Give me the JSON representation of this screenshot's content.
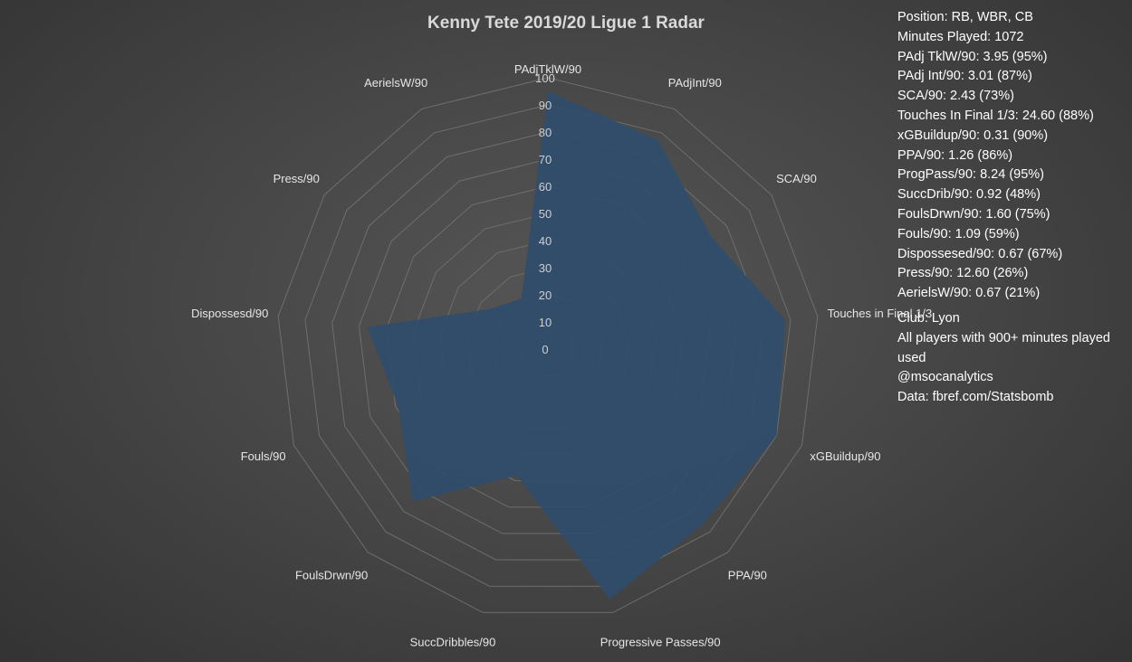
{
  "chart_data": {
    "type": "radar",
    "title": "Kenny Tete 2019/20 Ligue 1 Radar",
    "axes": [
      "PAdjTklW/90",
      "PAdjInt/90",
      "SCA/90",
      "Touches in Final 1/3",
      "xGBuildup/90",
      "PPA/90",
      "Progressive Passes/90",
      "SuccDribbles/90",
      "FoulsDrwn/90",
      "Fouls/90",
      "Dispossesd/90",
      "Press/90",
      "AerielsW/90"
    ],
    "series": [
      {
        "values": [
          95,
          87,
          73,
          88,
          90,
          86,
          95,
          48,
          75,
          59,
          67,
          26,
          21
        ]
      }
    ],
    "rlim": [
      0,
      100
    ],
    "ticks": [
      "0",
      "10",
      "20",
      "30",
      "40",
      "50",
      "60",
      "70",
      "80",
      "90",
      "100"
    ],
    "colors": {
      "fill": "#2f4d6b",
      "grid": "#6e6e6e",
      "tick_text": "#cfcfcf",
      "axis_label": "#e6e6e6"
    }
  },
  "info": {
    "stats": [
      "Position: RB, WBR, CB",
      "Minutes Played: 1072",
      "PAdj TklW/90: 3.95 (95%)",
      "PAdj Int/90: 3.01 (87%)",
      "SCA/90: 2.43 (73%)",
      "Touches In Final 1/3: 24.60 (88%)",
      "xGBuildup/90: 0.31 (90%)",
      "PPA/90: 1.26 (86%)",
      "ProgPass/90: 8.24 (95%)",
      "SuccDrib/90: 0.92 (48%)",
      "FoulsDrwn/90: 1.60 (75%)",
      "Fouls/90: 1.09 (59%)",
      "Dispossesed/90: 0.67 (67%)",
      "Press/90: 12.60 (26%)",
      "AerielsW/90: 0.67 (21%)"
    ],
    "notes": [
      "Club: Lyon",
      "All players with 900+ minutes played used",
      "@msocanalytics",
      "Data: fbref.com/Statsbomb"
    ]
  }
}
